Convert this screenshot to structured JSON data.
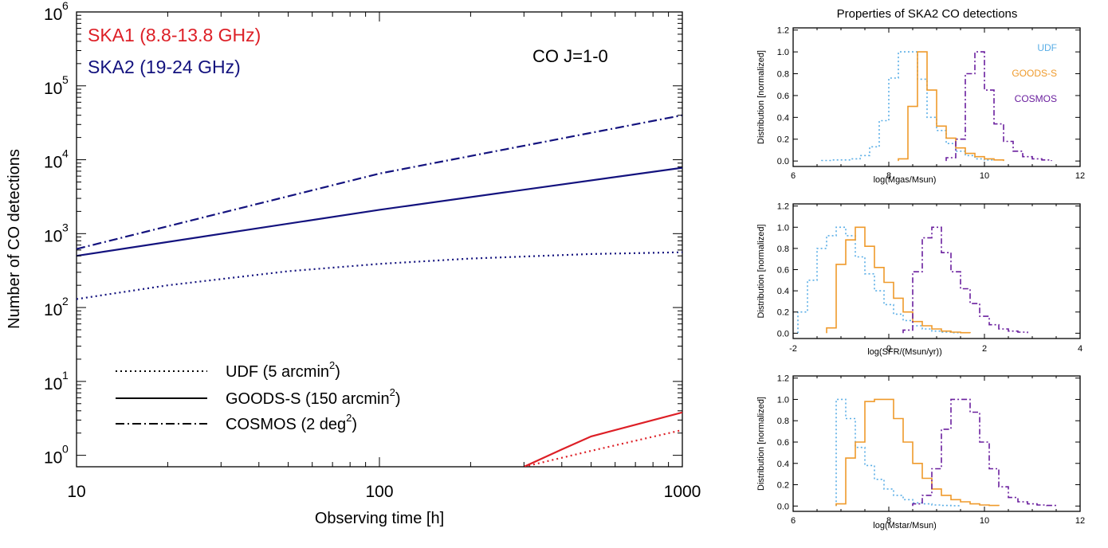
{
  "colors": {
    "ska1": "#dd1f26",
    "ska2": "#13127e",
    "udf": "#5aaee6",
    "goods": "#ef9a2b",
    "cosmos": "#6a1f9e"
  },
  "chart_data": [
    {
      "type": "line",
      "title": "",
      "xlabel": "Observing time [h]",
      "ylabel": "Number of CO detections",
      "xscale": "log",
      "yscale": "log",
      "xlim": [
        10,
        1000
      ],
      "ylim": [
        0.7,
        1000000
      ],
      "x_ticks": [
        {
          "v": 10,
          "label": "10"
        },
        {
          "v": 100,
          "label": "100"
        },
        {
          "v": 1000,
          "label": "1000"
        }
      ],
      "y_ticks": [
        {
          "v": 1,
          "base": "10",
          "exp": "0"
        },
        {
          "v": 10,
          "base": "10",
          "exp": "1"
        },
        {
          "v": 100,
          "base": "10",
          "exp": "2"
        },
        {
          "v": 1000,
          "base": "10",
          "exp": "3"
        },
        {
          "v": 10000,
          "base": "10",
          "exp": "4"
        },
        {
          "v": 100000,
          "base": "10",
          "exp": "5"
        },
        {
          "v": 1000000,
          "base": "10",
          "exp": "6"
        }
      ],
      "band_labels": [
        {
          "text": "SKA1 (8.8-13.8 GHz)",
          "color_key": "ska1"
        },
        {
          "text": "SKA2 (19-24 GHz)",
          "color_key": "ska2"
        }
      ],
      "annotation": "CO J=1-0",
      "legend_position": "bottom-left",
      "legend": [
        {
          "style": "dotted",
          "label": "UDF (5 arcmin",
          "sup": "2",
          "tail": ")"
        },
        {
          "style": "solid",
          "label": "GOODS-S (150 arcmin",
          "sup": "2",
          "tail": ")"
        },
        {
          "style": "dashdot",
          "label": "COSMOS (2 deg",
          "sup": "2",
          "tail": ")"
        }
      ],
      "series": [
        {
          "band": "SKA2",
          "field": "UDF",
          "style": "dotted",
          "color_key": "ska2",
          "x": [
            10,
            20,
            50,
            100,
            200,
            500,
            1000
          ],
          "y": [
            130,
            200,
            310,
            390,
            460,
            530,
            560
          ]
        },
        {
          "band": "SKA2",
          "field": "GOODS-S",
          "style": "solid",
          "color_key": "ska2",
          "x": [
            10,
            100,
            1000
          ],
          "y": [
            500,
            2100,
            7800
          ]
        },
        {
          "band": "SKA2",
          "field": "COSMOS",
          "style": "dashdot",
          "color_key": "ska2",
          "x": [
            10,
            100,
            1000
          ],
          "y": [
            620,
            6500,
            40000
          ]
        },
        {
          "band": "SKA1",
          "field": "UDF",
          "style": "dotted",
          "color_key": "ska1",
          "x": [
            300,
            500,
            1000
          ],
          "y": [
            0.7,
            1.15,
            2.2
          ]
        },
        {
          "band": "SKA1",
          "field": "GOODS-S",
          "style": "solid",
          "color_key": "ska1",
          "x": [
            300,
            400,
            500,
            800,
            1000
          ],
          "y": [
            0.7,
            1.2,
            1.8,
            3.0,
            3.8
          ]
        }
      ]
    },
    {
      "type": "histogram",
      "title": "Properties of SKA2 CO detections",
      "xlabel": "log(Mgas/Msun)",
      "ylabel": "Distribution [normalized]",
      "xlim": [
        6,
        12
      ],
      "ylim": [
        -0.05,
        1.22
      ],
      "x_ticks": [
        "6",
        "8",
        "10",
        "12"
      ],
      "y_ticks": [
        "0.0",
        "0.2",
        "0.4",
        "0.6",
        "0.8",
        "1.0",
        "1.2"
      ],
      "legend_position": "top-right",
      "legend": [
        "UDF",
        "GOODS-S",
        "COSMOS"
      ],
      "series": [
        {
          "name": "UDF",
          "style": "dotted",
          "color_key": "udf",
          "edges": [
            6.6,
            6.8,
            7.0,
            7.2,
            7.4,
            7.6,
            7.8,
            8.0,
            8.2,
            8.4,
            8.6,
            8.8,
            9.0,
            9.2,
            9.4,
            9.6,
            9.8,
            10.0,
            10.2
          ],
          "values": [
            0.005,
            0.01,
            0.01,
            0.02,
            0.05,
            0.13,
            0.37,
            0.76,
            1.0,
            1.0,
            0.75,
            0.4,
            0.28,
            0.16,
            0.09,
            0.05,
            0.02,
            0.01
          ]
        },
        {
          "name": "GOODS-S",
          "style": "solid",
          "color_key": "goods",
          "edges": [
            8.2,
            8.4,
            8.6,
            8.8,
            9.0,
            9.2,
            9.4,
            9.6,
            9.8,
            10.0,
            10.2,
            10.4
          ],
          "values": [
            0.02,
            0.5,
            1.0,
            0.65,
            0.32,
            0.21,
            0.12,
            0.07,
            0.04,
            0.02,
            0.01
          ]
        },
        {
          "name": "COSMOS",
          "style": "dashdot",
          "color_key": "cosmos",
          "edges": [
            9.2,
            9.4,
            9.6,
            9.8,
            10.0,
            10.2,
            10.4,
            10.6,
            10.8,
            11.0,
            11.2,
            11.4
          ],
          "values": [
            0.03,
            0.2,
            0.8,
            1.0,
            0.65,
            0.34,
            0.18,
            0.09,
            0.04,
            0.02,
            0.01
          ]
        }
      ]
    },
    {
      "type": "histogram",
      "title": "",
      "xlabel": "log(SFR/(Msun/yr))",
      "ylabel": "Distribution [normalized]",
      "xlim": [
        -2,
        4
      ],
      "ylim": [
        -0.05,
        1.22
      ],
      "x_ticks": [
        "-2",
        "0",
        "2",
        "4"
      ],
      "y_ticks": [
        "0.0",
        "0.2",
        "0.4",
        "0.6",
        "0.8",
        "1.0",
        "1.2"
      ],
      "series": [
        {
          "name": "UDF",
          "style": "dotted",
          "color_key": "udf",
          "edges": [
            -1.9,
            -1.7,
            -1.5,
            -1.3,
            -1.1,
            -0.9,
            -0.7,
            -0.5,
            -0.3,
            -0.1,
            0.1,
            0.3,
            0.5,
            0.7,
            0.9,
            1.1,
            1.3,
            1.5
          ],
          "values": [
            0.2,
            0.5,
            0.8,
            0.92,
            1.0,
            0.92,
            0.72,
            0.56,
            0.4,
            0.27,
            0.18,
            0.12,
            0.07,
            0.04,
            0.02,
            0.01,
            0.005
          ]
        },
        {
          "name": "GOODS-S",
          "style": "solid",
          "color_key": "goods",
          "edges": [
            -1.3,
            -1.1,
            -0.9,
            -0.7,
            -0.5,
            -0.3,
            -0.1,
            0.1,
            0.3,
            0.5,
            0.7,
            0.9,
            1.1,
            1.3,
            1.5,
            1.7
          ],
          "values": [
            0.05,
            0.65,
            0.88,
            1.0,
            0.82,
            0.62,
            0.48,
            0.33,
            0.2,
            0.11,
            0.07,
            0.04,
            0.02,
            0.01,
            0.005
          ]
        },
        {
          "name": "COSMOS",
          "style": "dashdot",
          "color_key": "cosmos",
          "edges": [
            0.3,
            0.5,
            0.7,
            0.9,
            1.1,
            1.3,
            1.5,
            1.7,
            1.9,
            2.1,
            2.3,
            2.5,
            2.7,
            2.9
          ],
          "values": [
            0.03,
            0.58,
            0.9,
            1.0,
            0.76,
            0.58,
            0.42,
            0.28,
            0.16,
            0.08,
            0.04,
            0.02,
            0.01
          ]
        }
      ]
    },
    {
      "type": "histogram",
      "title": "",
      "xlabel": "log(Mstar/Msun)",
      "ylabel": "Distribution [normalized]",
      "xlim": [
        6,
        12
      ],
      "ylim": [
        -0.05,
        1.22
      ],
      "x_ticks": [
        "6",
        "8",
        "10",
        "12"
      ],
      "y_ticks": [
        "0.0",
        "0.2",
        "0.4",
        "0.6",
        "0.8",
        "1.0",
        "1.2"
      ],
      "series": [
        {
          "name": "UDF",
          "style": "dotted",
          "color_key": "udf",
          "edges": [
            6.9,
            7.1,
            7.3,
            7.5,
            7.7,
            7.9,
            8.1,
            8.3,
            8.5,
            8.7,
            8.9,
            9.1,
            9.3,
            9.5
          ],
          "values": [
            1.0,
            0.82,
            0.55,
            0.38,
            0.25,
            0.16,
            0.1,
            0.06,
            0.03,
            0.02,
            0.01,
            0.005,
            0.003
          ]
        },
        {
          "name": "GOODS-S",
          "style": "solid",
          "color_key": "goods",
          "edges": [
            6.9,
            7.1,
            7.3,
            7.5,
            7.7,
            7.9,
            8.1,
            8.3,
            8.5,
            8.7,
            8.9,
            9.1,
            9.3,
            9.5,
            9.7,
            9.9,
            10.1,
            10.3
          ],
          "values": [
            0.02,
            0.45,
            0.6,
            0.98,
            1.0,
            1.0,
            0.82,
            0.6,
            0.4,
            0.26,
            0.16,
            0.1,
            0.06,
            0.04,
            0.02,
            0.01,
            0.005
          ]
        },
        {
          "name": "COSMOS",
          "style": "dashdot",
          "color_key": "cosmos",
          "edges": [
            8.5,
            8.7,
            8.9,
            9.1,
            9.3,
            9.5,
            9.7,
            9.9,
            10.1,
            10.3,
            10.5,
            10.7,
            10.9,
            11.1,
            11.3,
            11.5
          ],
          "values": [
            0.02,
            0.1,
            0.35,
            0.72,
            1.0,
            1.0,
            0.88,
            0.6,
            0.35,
            0.18,
            0.08,
            0.04,
            0.02,
            0.01,
            0.005
          ]
        }
      ]
    }
  ]
}
